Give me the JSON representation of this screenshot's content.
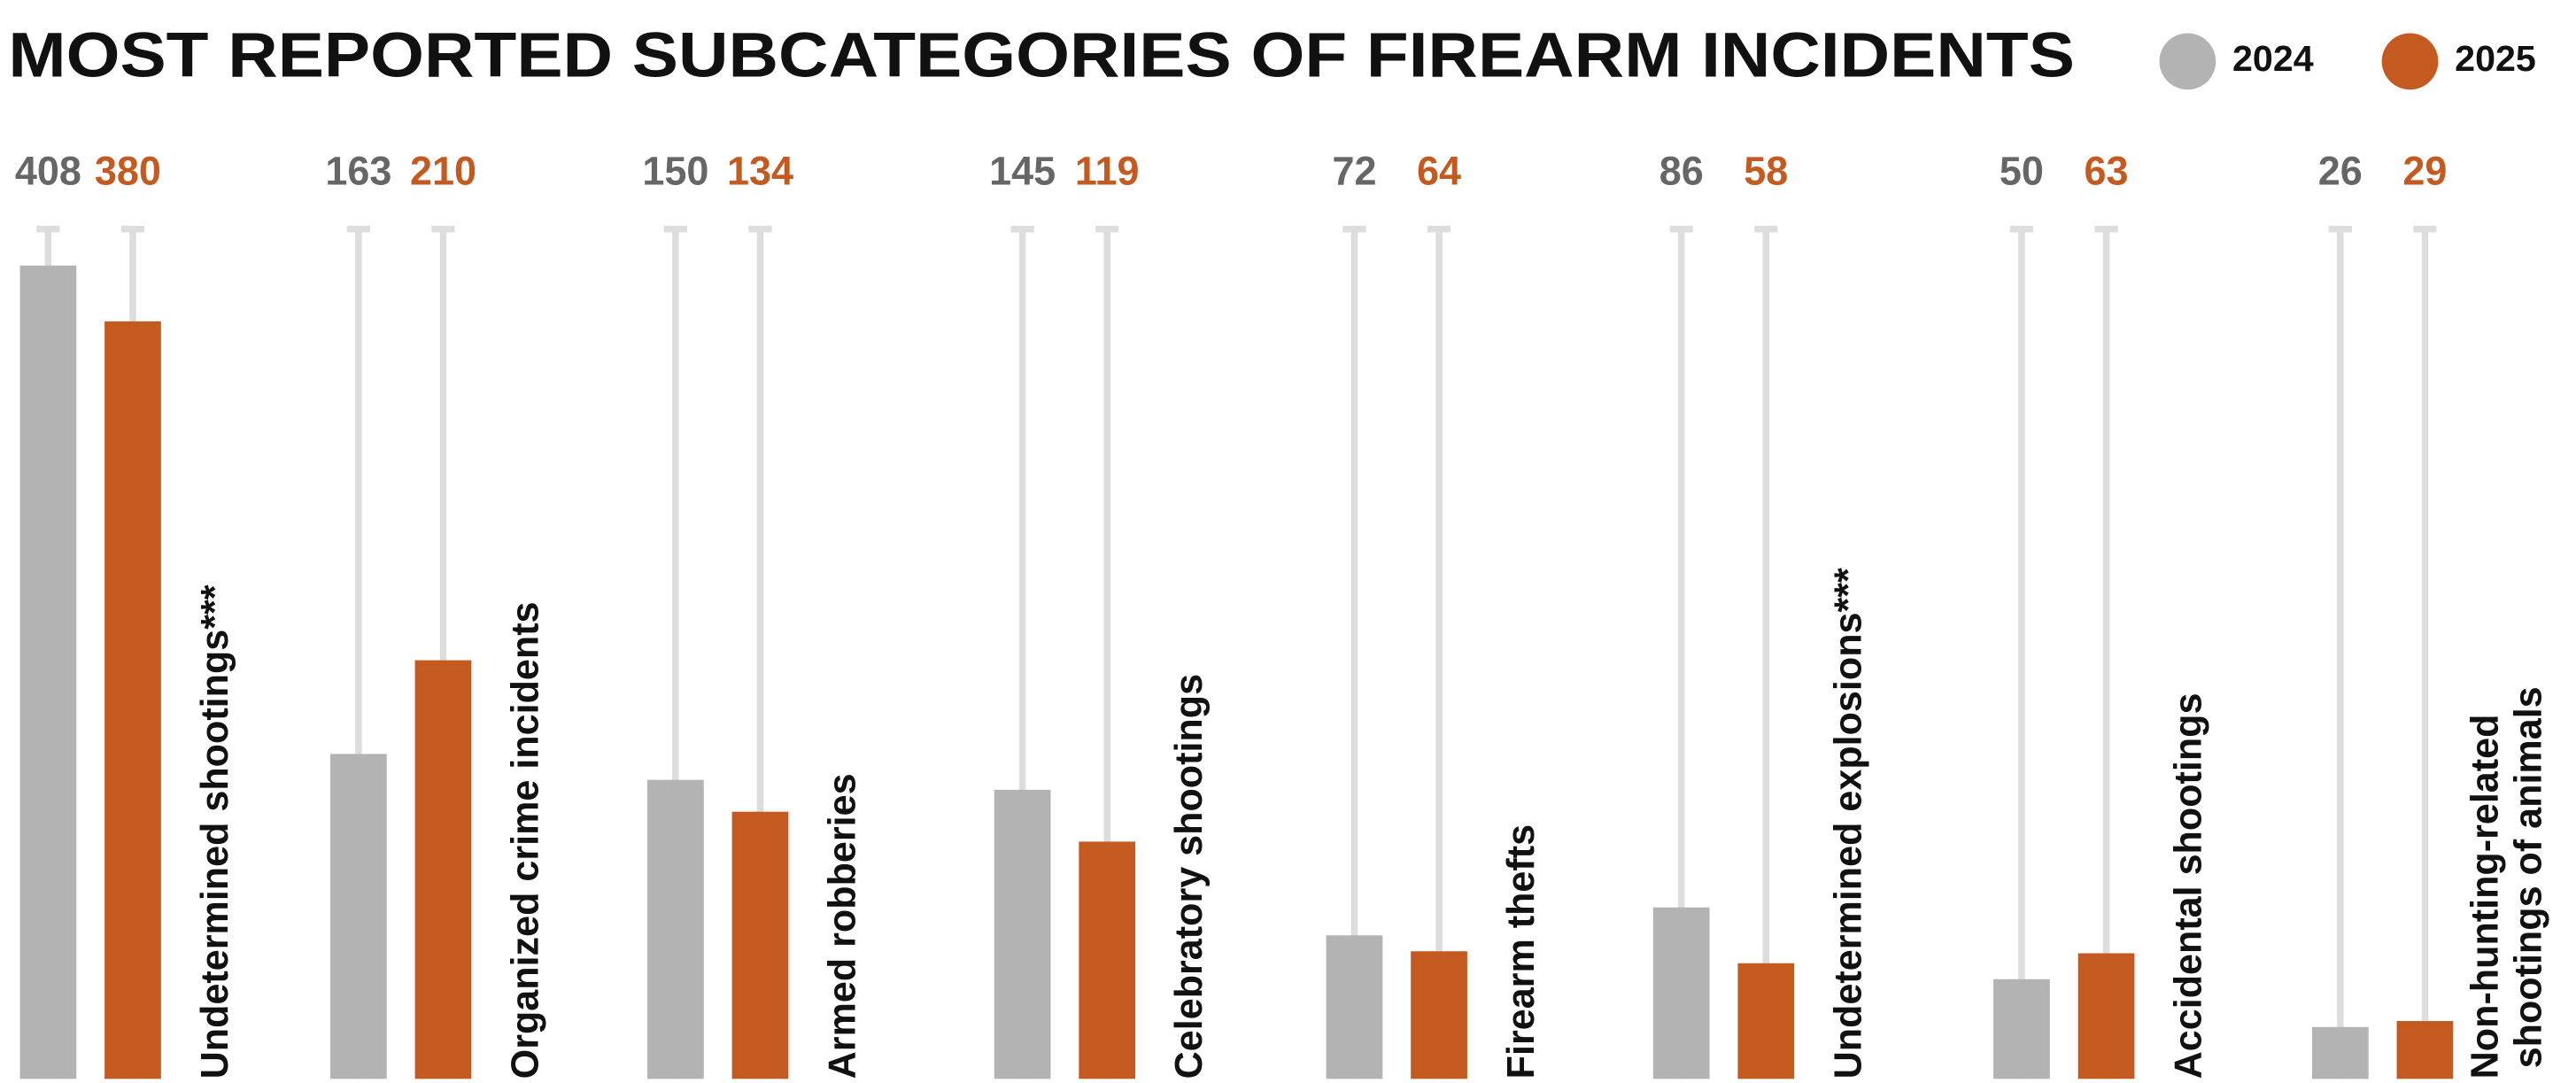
{
  "chart_data": {
    "type": "bar",
    "title": "MOST REPORTED SUBCATEGORIES OF FIREARM INCIDENTS",
    "categories": [
      "Undetermined shootings***",
      "Organized crime incidents",
      "Armed robberies",
      "Celebratory shootings",
      "Firearm thefts",
      "Undetermined explosions***",
      "Accidental shootings",
      "Non-hunting-related\nshootings of animals"
    ],
    "series": [
      {
        "name": "2024",
        "color": "#b3b3b3",
        "label_color": "#666666",
        "values": [
          408,
          163,
          150,
          145,
          72,
          86,
          50,
          26
        ]
      },
      {
        "name": "2025",
        "color": "#c55a21",
        "label_color": "#c55a21",
        "values": [
          380,
          210,
          134,
          119,
          64,
          58,
          63,
          29
        ]
      }
    ],
    "legend": "top-right"
  }
}
